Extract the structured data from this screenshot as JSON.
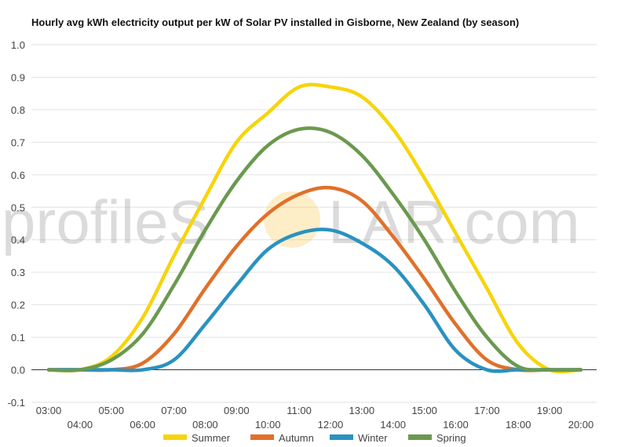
{
  "watermark": {
    "text_left": "profileS",
    "text_right": "LAR.com"
  },
  "chart_data": {
    "type": "line",
    "title": "Hourly avg kWh electricity output per kW of Solar PV installed in Gisborne, New Zealand (by season)",
    "xlabel": "",
    "ylabel": "",
    "ylim": [
      -0.1,
      1.0
    ],
    "yticks": [
      "1.0",
      "0.9",
      "0.8",
      "0.7",
      "0.6",
      "0.5",
      "0.4",
      "0.3",
      "0.2",
      "0.1",
      "0.0",
      "-0.1"
    ],
    "x": [
      "03:00",
      "04:00",
      "05:00",
      "06:00",
      "07:00",
      "08:00",
      "09:00",
      "10:00",
      "11:00",
      "12:00",
      "13:00",
      "14:00",
      "15:00",
      "16:00",
      "17:00",
      "18:00",
      "19:00",
      "20:00"
    ],
    "grid": true,
    "legend_position": "bottom",
    "series": [
      {
        "name": "Summer",
        "color": "#f7d40a",
        "values": [
          0.0,
          0.0,
          0.04,
          0.16,
          0.35,
          0.53,
          0.7,
          0.79,
          0.87,
          0.87,
          0.84,
          0.74,
          0.59,
          0.42,
          0.25,
          0.08,
          0.0,
          0.0
        ]
      },
      {
        "name": "Autumn",
        "color": "#e0702a",
        "values": [
          0.0,
          0.0,
          0.0,
          0.02,
          0.11,
          0.25,
          0.38,
          0.48,
          0.54,
          0.56,
          0.52,
          0.41,
          0.28,
          0.14,
          0.03,
          0.0,
          0.0,
          0.0
        ]
      },
      {
        "name": "Winter",
        "color": "#2a92c0",
        "values": [
          0.0,
          0.0,
          0.0,
          0.0,
          0.03,
          0.14,
          0.26,
          0.37,
          0.42,
          0.43,
          0.39,
          0.32,
          0.2,
          0.06,
          0.0,
          0.0,
          0.0,
          0.0
        ]
      },
      {
        "name": "Spring",
        "color": "#6b994f",
        "values": [
          0.0,
          0.0,
          0.03,
          0.11,
          0.26,
          0.43,
          0.58,
          0.69,
          0.74,
          0.73,
          0.66,
          0.54,
          0.4,
          0.24,
          0.1,
          0.01,
          0.0,
          0.0
        ]
      }
    ]
  }
}
